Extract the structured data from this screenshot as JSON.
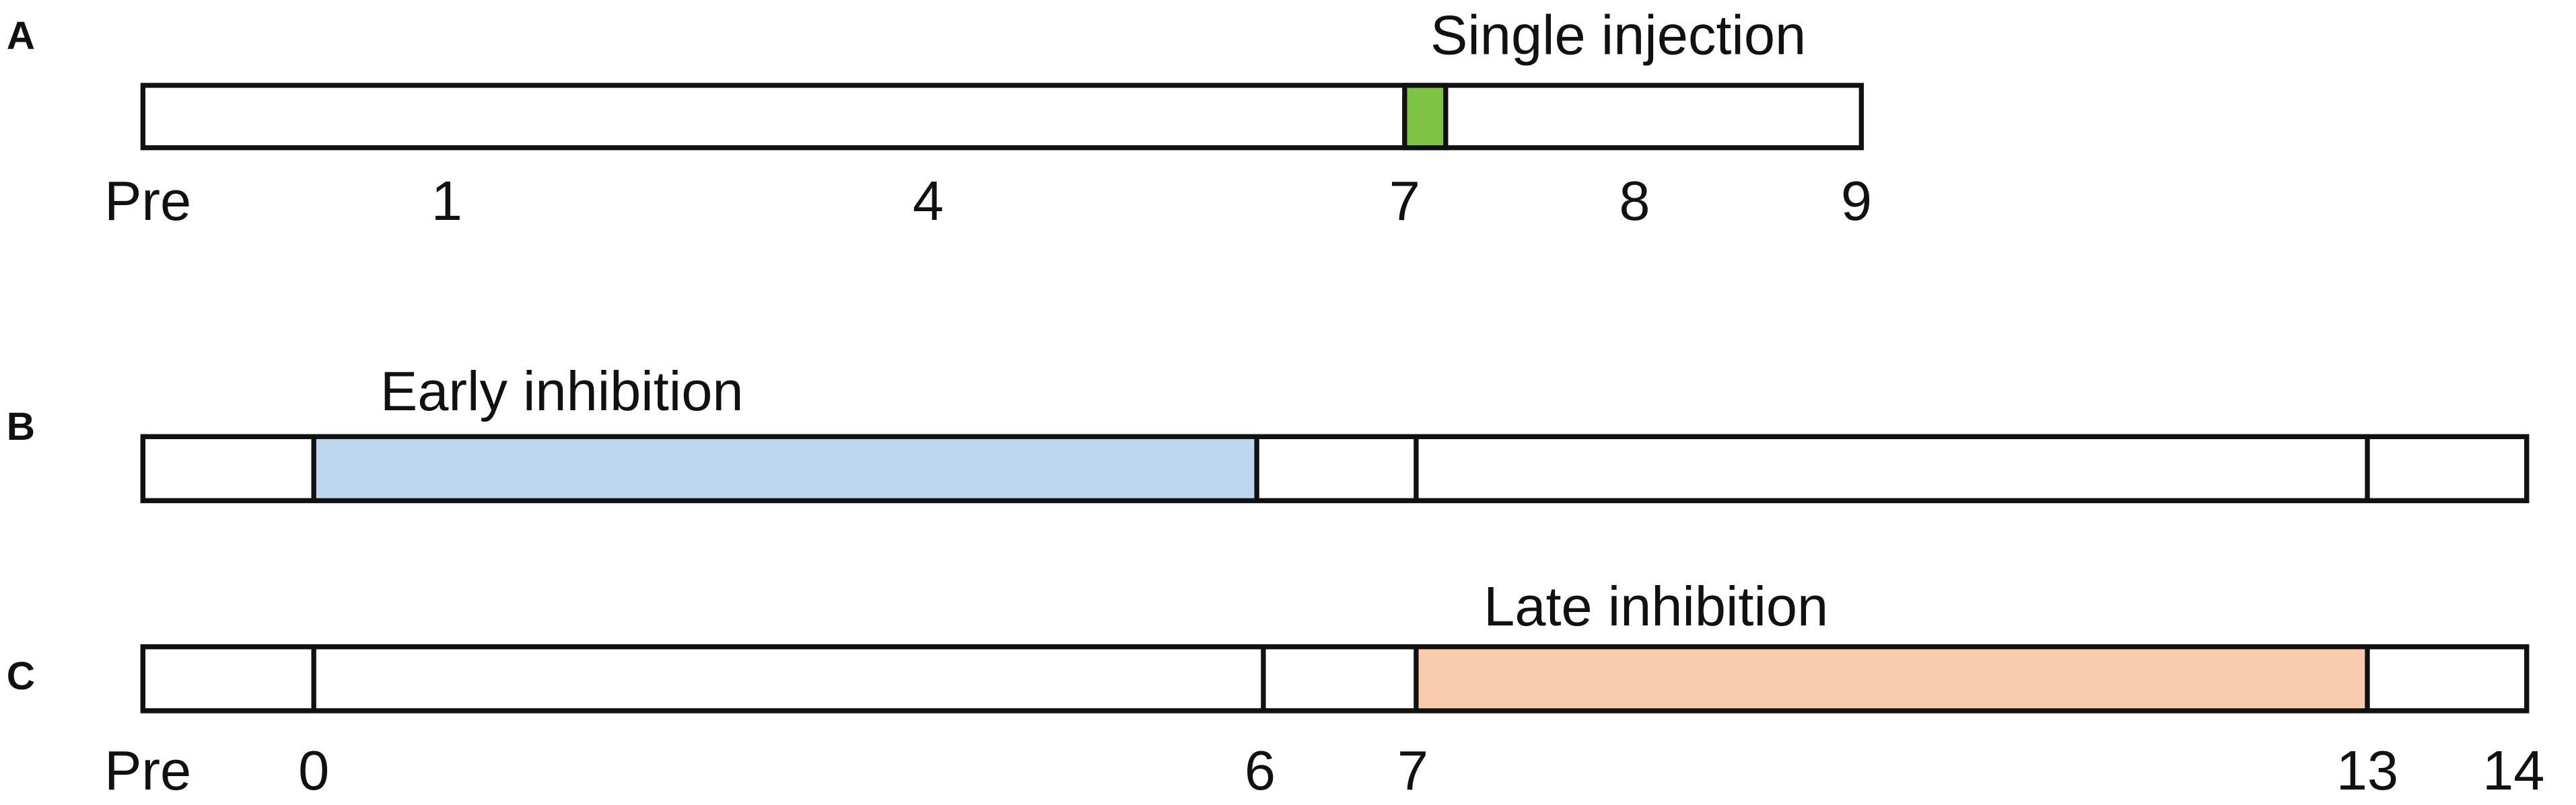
{
  "panels": [
    {
      "letter": "A",
      "label": "Single injection",
      "ticks": [
        "Pre",
        "1",
        "4",
        "7",
        "8",
        "9"
      ]
    },
    {
      "letter": "B",
      "label": "Early inhibition"
    },
    {
      "letter": "C",
      "label": "Late inhibition",
      "ticks": [
        "Pre",
        "0",
        "6",
        "7",
        "13",
        "14"
      ]
    }
  ]
}
